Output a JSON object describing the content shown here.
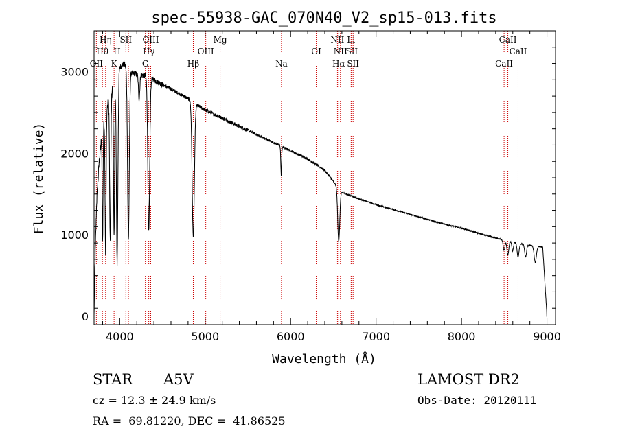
{
  "chart_data": {
    "type": "line",
    "title": "spec-55938-GAC_070N40_V2_sp15-013.fits",
    "xlabel": "Wavelength (Å)",
    "ylabel": "Flux (relative)",
    "xlim": [
      3700,
      9100
    ],
    "ylim": [
      -100,
      3500
    ],
    "xticks": [
      4000,
      5000,
      6000,
      7000,
      8000,
      9000
    ],
    "yticks": [
      0,
      1000,
      2000,
      3000
    ],
    "xtick_labels": [
      "4000",
      "5000",
      "6000",
      "7000",
      "8000",
      "9000"
    ],
    "ytick_labels": [
      "0",
      "1000",
      "2000",
      "3000"
    ],
    "grid": false,
    "line_color": "#000000",
    "marker_color": "#cc0000",
    "continuum_anchors": [
      [
        3700,
        0
      ],
      [
        3712,
        700
      ],
      [
        3730,
        1400
      ],
      [
        3760,
        1900
      ],
      [
        3800,
        2300
      ],
      [
        3850,
        2550
      ],
      [
        3900,
        2750
      ],
      [
        3950,
        2900
      ],
      [
        4000,
        3050
      ],
      [
        4050,
        3100
      ],
      [
        4100,
        3000
      ],
      [
        4150,
        2980
      ],
      [
        4200,
        2970
      ],
      [
        4250,
        2960
      ],
      [
        4300,
        2950
      ],
      [
        4350,
        2920
      ],
      [
        4400,
        2900
      ],
      [
        4500,
        2840
      ],
      [
        4600,
        2790
      ],
      [
        4700,
        2730
      ],
      [
        4800,
        2670
      ],
      [
        4900,
        2590
      ],
      [
        5000,
        2530
      ],
      [
        5200,
        2430
      ],
      [
        5400,
        2330
      ],
      [
        5600,
        2230
      ],
      [
        5800,
        2130
      ],
      [
        6000,
        2030
      ],
      [
        6200,
        1930
      ],
      [
        6400,
        1790
      ],
      [
        6600,
        1520
      ],
      [
        6700,
        1480
      ],
      [
        6800,
        1440
      ],
      [
        7000,
        1370
      ],
      [
        7200,
        1310
      ],
      [
        7400,
        1250
      ],
      [
        7600,
        1190
      ],
      [
        7800,
        1130
      ],
      [
        8000,
        1080
      ],
      [
        8200,
        1020
      ],
      [
        8400,
        960
      ],
      [
        8600,
        910
      ],
      [
        8800,
        870
      ],
      [
        8950,
        850
      ],
      [
        9000,
        0
      ]
    ],
    "absorption_features": [
      {
        "center": 3800,
        "depth": 1400,
        "width": 5
      },
      {
        "center": 3835,
        "depth": 1700,
        "width": 6
      },
      {
        "center": 3889,
        "depth": 1800,
        "width": 7
      },
      {
        "center": 3934,
        "depth": 1900,
        "width": 6
      },
      {
        "center": 3970,
        "depth": 2300,
        "width": 9
      },
      {
        "center": 4102,
        "depth": 2050,
        "width": 10
      },
      {
        "center": 4227,
        "depth": 300,
        "width": 8
      },
      {
        "center": 4340,
        "depth": 1900,
        "width": 11
      },
      {
        "center": 4861,
        "depth": 1650,
        "width": 13
      },
      {
        "center": 5890,
        "depth": 350,
        "width": 5
      },
      {
        "center": 6563,
        "depth": 650,
        "width": 12
      },
      {
        "center": 8498,
        "depth": 130,
        "width": 10
      },
      {
        "center": 8542,
        "depth": 170,
        "width": 11
      },
      {
        "center": 8598,
        "depth": 110,
        "width": 9
      },
      {
        "center": 8662,
        "depth": 170,
        "width": 11
      },
      {
        "center": 8750,
        "depth": 150,
        "width": 11
      },
      {
        "center": 8863,
        "depth": 200,
        "width": 13
      }
    ],
    "line_markers": [
      {
        "wavelength": 3727,
        "label": "OII",
        "row": 3
      },
      {
        "wavelength": 3798,
        "label": "Hθ",
        "row": 2
      },
      {
        "wavelength": 3835,
        "label": "Hη",
        "row": 1
      },
      {
        "wavelength": 3934,
        "label": "K",
        "row": 3
      },
      {
        "wavelength": 3969,
        "label": "H",
        "row": 2
      },
      {
        "wavelength": 4072,
        "label": "SII",
        "row": 1
      },
      {
        "wavelength": 4102,
        "label": "",
        "row": 0
      },
      {
        "wavelength": 4300,
        "label": "G",
        "row": 3
      },
      {
        "wavelength": 4340,
        "label": "Hγ",
        "row": 2
      },
      {
        "wavelength": 4363,
        "label": "OIII",
        "row": 1
      },
      {
        "wavelength": 4861,
        "label": "Hβ",
        "row": 3
      },
      {
        "wavelength": 5007,
        "label": "OIII",
        "row": 2
      },
      {
        "wavelength": 5175,
        "label": "Mg",
        "row": 1
      },
      {
        "wavelength": 5893,
        "label": "Na",
        "row": 3
      },
      {
        "wavelength": 6300,
        "label": "OI",
        "row": 2
      },
      {
        "wavelength": 6548,
        "label": "NII",
        "row": 1
      },
      {
        "wavelength": 6563,
        "label": "Hα",
        "row": 3
      },
      {
        "wavelength": 6583,
        "label": "NII",
        "row": 2
      },
      {
        "wavelength": 6708,
        "label": "Li",
        "row": 1
      },
      {
        "wavelength": 6716,
        "label": "SII",
        "row": 2
      },
      {
        "wavelength": 6731,
        "label": "SII",
        "row": 3
      },
      {
        "wavelength": 8498,
        "label": "CaII",
        "row": 3
      },
      {
        "wavelength": 8542,
        "label": "CaII",
        "row": 1
      },
      {
        "wavelength": 8662,
        "label": "CaII",
        "row": 2
      }
    ]
  },
  "info": {
    "object_class": "STAR",
    "subclass": "A5V",
    "survey": "LAMOST DR2",
    "redshift": "cz = 12.3 ± 24.9 km/s",
    "obs_date": "Obs-Date: 20120111",
    "coords": "RA =  69.81220, DEC =  41.86525"
  }
}
